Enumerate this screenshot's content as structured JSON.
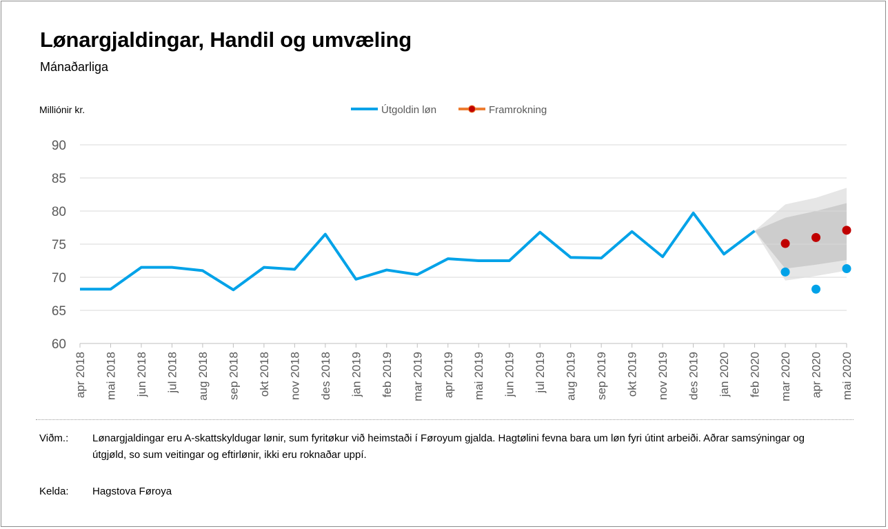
{
  "header": {
    "title": "Lønargjaldingar, Handil og umvæling",
    "subtitle": "Mánaðarliga"
  },
  "chart_data": {
    "type": "line",
    "ylabel": "Milliónir kr.",
    "ylim": [
      60,
      90
    ],
    "yticks": [
      60,
      65,
      70,
      75,
      80,
      85,
      90
    ],
    "grid": true,
    "legend_position": "top-center",
    "categories": [
      "apr 2018",
      "mai 2018",
      "jun 2018",
      "jul 2018",
      "aug 2018",
      "sep 2018",
      "okt 2018",
      "nov 2018",
      "des 2018",
      "jan 2019",
      "feb 2019",
      "mar 2019",
      "apr 2019",
      "mai 2019",
      "jun 2019",
      "jul 2019",
      "aug 2019",
      "sep 2019",
      "okt 2019",
      "nov 2019",
      "des 2019",
      "jan 2020",
      "feb 2020",
      "mar 2020",
      "apr 2020",
      "mai 2020"
    ],
    "series": [
      {
        "name": "Útgoldin løn",
        "color": "#00a2e8",
        "values": [
          68.2,
          68.2,
          71.5,
          71.5,
          71.0,
          68.1,
          71.5,
          71.2,
          76.5,
          69.7,
          71.1,
          70.4,
          72.8,
          72.5,
          72.5,
          76.8,
          73.0,
          72.9,
          76.9,
          73.1,
          79.7,
          73.5,
          77.0,
          null,
          null,
          null
        ],
        "extra_points": [
          {
            "category": "mar 2020",
            "value": 70.8
          },
          {
            "category": "apr 2020",
            "value": 68.2
          },
          {
            "category": "mai 2020",
            "value": 71.3
          }
        ]
      },
      {
        "name": "Framrokning",
        "color": "#c00000",
        "line_color": "#ed7d31",
        "points": [
          {
            "category": "mar 2020",
            "value": 75.1
          },
          {
            "category": "apr 2020",
            "value": 76.0
          },
          {
            "category": "mai 2020",
            "value": 77.1
          }
        ]
      }
    ],
    "forecast_band": {
      "outer_color": "#e6e6e6",
      "inner_color": "#cdcdcd",
      "categories": [
        "feb 2020",
        "mar 2020",
        "apr 2020",
        "mai 2020"
      ],
      "outer_upper": [
        77.0,
        81.0,
        82.0,
        83.5
      ],
      "outer_lower": [
        77.0,
        69.5,
        70.2,
        71.0
      ],
      "inner_upper": [
        77.0,
        79.0,
        80.0,
        81.2
      ],
      "inner_lower": [
        77.0,
        71.3,
        71.9,
        72.6
      ]
    }
  },
  "notes": {
    "remark_label": "Viðm.:",
    "remark_text": "Lønargjaldingar eru A-skattskyldugar lønir, sum fyritøkur við heimstaði í Føroyum gjalda. Hagtølini fevna bara um løn fyri útint arbeiði. Aðrar samsýningar og útgjøld, so sum veitingar og eftirlønir, ikki eru roknaðar uppí.",
    "source_label": "Kelda:",
    "source_text": "Hagstova Føroya"
  }
}
